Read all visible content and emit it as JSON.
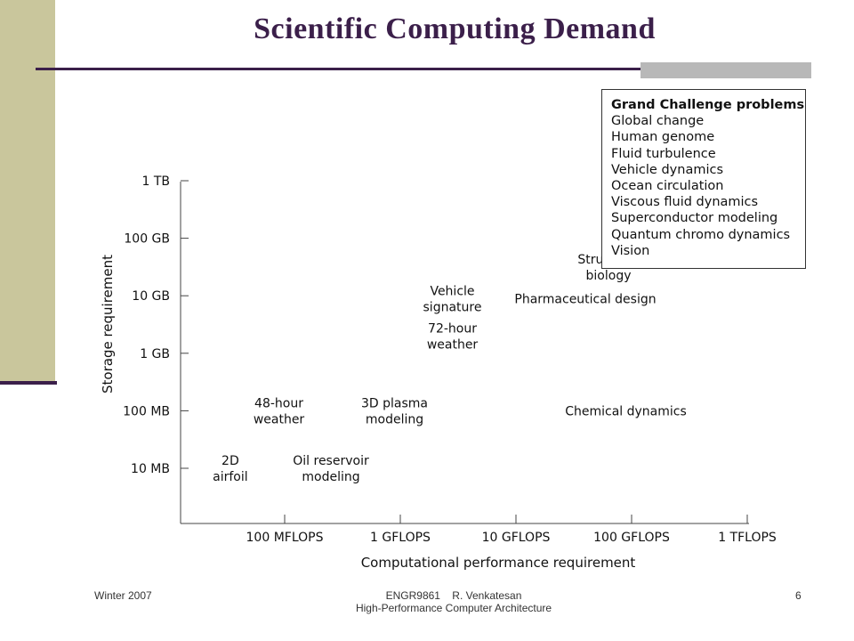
{
  "slide": {
    "title": "Scientific Computing Demand",
    "footer_left": "Winter 2007",
    "footer_center_line1": "ENGR9861    R. Venkatesan",
    "footer_center_line2": "High-Performance Computer Architecture",
    "page_number": "6",
    "colors": {
      "accent": "#3b1f4a",
      "sidebar": "#c9c69c",
      "accent_gray": "#b8b8b8"
    }
  },
  "legend": {
    "title": "Grand Challenge problems",
    "items": [
      "Global change",
      "Human genome",
      "Fluid turbulence",
      "Vehicle dynamics",
      "Ocean circulation",
      "Viscous fluid dynamics",
      "Superconductor modeling",
      "Quantum chromo dynamics",
      "Vision"
    ]
  },
  "chart_data": {
    "type": "scatter",
    "xlabel": "Computational performance requirement",
    "ylabel": "Storage requirement",
    "x_scale": "log",
    "y_scale": "log",
    "x_ticks": [
      "100 MFLOPS",
      "1 GFLOPS",
      "10 GFLOPS",
      "100 GFLOPS",
      "1 TFLOPS"
    ],
    "y_ticks": [
      "10 MB",
      "100 MB",
      "1 GB",
      "10 GB",
      "100 GB",
      "1 TB"
    ],
    "grid": false,
    "points": [
      {
        "label": [
          "2D",
          "airfoil"
        ],
        "x_decade": -0.47,
        "y_decade": 0.0
      },
      {
        "label": [
          "Oil reservoir",
          "modeling"
        ],
        "x_decade": 0.4,
        "y_decade": 0.0
      },
      {
        "label": [
          "48-hour",
          "weather"
        ],
        "x_decade": -0.05,
        "y_decade": 1.0
      },
      {
        "label": [
          "3D plasma",
          "modeling"
        ],
        "x_decade": 0.95,
        "y_decade": 1.0
      },
      {
        "label": [
          "72-hour",
          "weather"
        ],
        "x_decade": 1.45,
        "y_decade": 2.3
      },
      {
        "label": [
          "Vehicle",
          "signature"
        ],
        "x_decade": 1.45,
        "y_decade": 2.95
      },
      {
        "label": [
          "Pharmaceutical design"
        ],
        "x_decade": 2.6,
        "y_decade": 2.95
      },
      {
        "label": [
          "Structural",
          "biology"
        ],
        "x_decade": 2.8,
        "y_decade": 3.5
      },
      {
        "label": [
          "Chemical dynamics"
        ],
        "x_decade": 2.95,
        "y_decade": 1.0
      }
    ]
  }
}
